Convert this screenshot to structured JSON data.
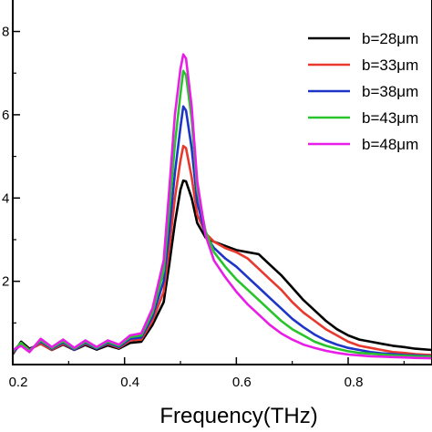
{
  "chart_data": {
    "type": "line",
    "title": "",
    "xlabel": "Frequency(THz)",
    "ylabel": "",
    "xlim": [
      0.2,
      0.95
    ],
    "ylim": [
      0,
      8.8
    ],
    "x_ticks": [
      0.2,
      0.4,
      0.6,
      0.8
    ],
    "x_tick_labels": [
      "0.2",
      "0.4",
      "0.6",
      "0.8"
    ],
    "y_ticks": [
      2,
      4,
      6,
      8
    ],
    "y_tick_labels": [
      "2",
      "4",
      "6",
      "8"
    ],
    "grid": false,
    "legend_position": "top-right",
    "series": [
      {
        "name": "b=28μm",
        "color": "#000000",
        "points": [
          [
            0.2,
            0.25
          ],
          [
            0.215,
            0.55
          ],
          [
            0.23,
            0.38
          ],
          [
            0.25,
            0.5
          ],
          [
            0.27,
            0.35
          ],
          [
            0.29,
            0.48
          ],
          [
            0.31,
            0.35
          ],
          [
            0.33,
            0.47
          ],
          [
            0.35,
            0.36
          ],
          [
            0.37,
            0.46
          ],
          [
            0.39,
            0.38
          ],
          [
            0.41,
            0.52
          ],
          [
            0.43,
            0.55
          ],
          [
            0.45,
            0.95
          ],
          [
            0.47,
            1.5
          ],
          [
            0.48,
            2.4
          ],
          [
            0.49,
            3.4
          ],
          [
            0.5,
            4.2
          ],
          [
            0.505,
            4.42
          ],
          [
            0.51,
            4.4
          ],
          [
            0.52,
            4.0
          ],
          [
            0.53,
            3.4
          ],
          [
            0.545,
            3.05
          ],
          [
            0.56,
            2.95
          ],
          [
            0.58,
            2.85
          ],
          [
            0.6,
            2.75
          ],
          [
            0.62,
            2.7
          ],
          [
            0.64,
            2.65
          ],
          [
            0.66,
            2.4
          ],
          [
            0.68,
            2.15
          ],
          [
            0.7,
            1.85
          ],
          [
            0.72,
            1.55
          ],
          [
            0.74,
            1.3
          ],
          [
            0.76,
            1.05
          ],
          [
            0.78,
            0.85
          ],
          [
            0.8,
            0.7
          ],
          [
            0.82,
            0.6
          ],
          [
            0.84,
            0.55
          ],
          [
            0.86,
            0.5
          ],
          [
            0.88,
            0.45
          ],
          [
            0.9,
            0.42
          ],
          [
            0.92,
            0.38
          ],
          [
            0.95,
            0.35
          ]
        ]
      },
      {
        "name": "b=33μm",
        "color": "#e8392f",
        "points": [
          [
            0.2,
            0.28
          ],
          [
            0.215,
            0.5
          ],
          [
            0.23,
            0.36
          ],
          [
            0.25,
            0.5
          ],
          [
            0.27,
            0.36
          ],
          [
            0.29,
            0.5
          ],
          [
            0.31,
            0.36
          ],
          [
            0.33,
            0.5
          ],
          [
            0.35,
            0.38
          ],
          [
            0.37,
            0.5
          ],
          [
            0.39,
            0.4
          ],
          [
            0.41,
            0.58
          ],
          [
            0.43,
            0.6
          ],
          [
            0.45,
            1.05
          ],
          [
            0.47,
            1.75
          ],
          [
            0.48,
            2.8
          ],
          [
            0.49,
            4.0
          ],
          [
            0.5,
            4.9
          ],
          [
            0.505,
            5.25
          ],
          [
            0.51,
            5.2
          ],
          [
            0.52,
            4.5
          ],
          [
            0.53,
            3.6
          ],
          [
            0.545,
            3.15
          ],
          [
            0.56,
            2.95
          ],
          [
            0.58,
            2.8
          ],
          [
            0.6,
            2.7
          ],
          [
            0.62,
            2.55
          ],
          [
            0.64,
            2.3
          ],
          [
            0.66,
            2.05
          ],
          [
            0.68,
            1.8
          ],
          [
            0.7,
            1.5
          ],
          [
            0.72,
            1.25
          ],
          [
            0.74,
            1.05
          ],
          [
            0.76,
            0.85
          ],
          [
            0.78,
            0.7
          ],
          [
            0.8,
            0.55
          ],
          [
            0.82,
            0.45
          ],
          [
            0.84,
            0.4
          ],
          [
            0.86,
            0.35
          ],
          [
            0.88,
            0.3
          ],
          [
            0.9,
            0.28
          ],
          [
            0.92,
            0.25
          ],
          [
            0.95,
            0.23
          ]
        ]
      },
      {
        "name": "b=38μm",
        "color": "#1f35c8",
        "points": [
          [
            0.2,
            0.3
          ],
          [
            0.215,
            0.48
          ],
          [
            0.23,
            0.35
          ],
          [
            0.25,
            0.55
          ],
          [
            0.27,
            0.38
          ],
          [
            0.29,
            0.53
          ],
          [
            0.31,
            0.36
          ],
          [
            0.33,
            0.52
          ],
          [
            0.35,
            0.38
          ],
          [
            0.37,
            0.52
          ],
          [
            0.39,
            0.42
          ],
          [
            0.41,
            0.62
          ],
          [
            0.43,
            0.65
          ],
          [
            0.45,
            1.15
          ],
          [
            0.47,
            2.0
          ],
          [
            0.48,
            3.2
          ],
          [
            0.49,
            4.6
          ],
          [
            0.5,
            5.7
          ],
          [
            0.505,
            6.2
          ],
          [
            0.51,
            6.1
          ],
          [
            0.52,
            5.2
          ],
          [
            0.53,
            3.9
          ],
          [
            0.545,
            3.1
          ],
          [
            0.56,
            2.8
          ],
          [
            0.58,
            2.55
          ],
          [
            0.6,
            2.35
          ],
          [
            0.62,
            2.1
          ],
          [
            0.64,
            1.85
          ],
          [
            0.66,
            1.6
          ],
          [
            0.68,
            1.35
          ],
          [
            0.7,
            1.1
          ],
          [
            0.72,
            0.9
          ],
          [
            0.74,
            0.72
          ],
          [
            0.76,
            0.58
          ],
          [
            0.78,
            0.48
          ],
          [
            0.8,
            0.4
          ],
          [
            0.82,
            0.35
          ],
          [
            0.84,
            0.3
          ],
          [
            0.86,
            0.27
          ],
          [
            0.88,
            0.25
          ],
          [
            0.9,
            0.23
          ],
          [
            0.92,
            0.22
          ],
          [
            0.95,
            0.2
          ]
        ]
      },
      {
        "name": "b=43μm",
        "color": "#27c42b",
        "points": [
          [
            0.2,
            0.32
          ],
          [
            0.215,
            0.52
          ],
          [
            0.23,
            0.33
          ],
          [
            0.25,
            0.58
          ],
          [
            0.27,
            0.4
          ],
          [
            0.29,
            0.56
          ],
          [
            0.31,
            0.38
          ],
          [
            0.33,
            0.55
          ],
          [
            0.35,
            0.4
          ],
          [
            0.37,
            0.55
          ],
          [
            0.39,
            0.45
          ],
          [
            0.41,
            0.66
          ],
          [
            0.43,
            0.7
          ],
          [
            0.45,
            1.25
          ],
          [
            0.47,
            2.25
          ],
          [
            0.48,
            3.7
          ],
          [
            0.49,
            5.3
          ],
          [
            0.5,
            6.5
          ],
          [
            0.505,
            7.05
          ],
          [
            0.51,
            6.95
          ],
          [
            0.52,
            5.9
          ],
          [
            0.53,
            4.2
          ],
          [
            0.545,
            3.2
          ],
          [
            0.56,
            2.7
          ],
          [
            0.58,
            2.35
          ],
          [
            0.6,
            2.05
          ],
          [
            0.62,
            1.8
          ],
          [
            0.64,
            1.55
          ],
          [
            0.66,
            1.3
          ],
          [
            0.68,
            1.05
          ],
          [
            0.7,
            0.85
          ],
          [
            0.72,
            0.7
          ],
          [
            0.74,
            0.55
          ],
          [
            0.76,
            0.45
          ],
          [
            0.78,
            0.38
          ],
          [
            0.8,
            0.32
          ],
          [
            0.82,
            0.28
          ],
          [
            0.84,
            0.26
          ],
          [
            0.86,
            0.24
          ],
          [
            0.88,
            0.22
          ],
          [
            0.9,
            0.21
          ],
          [
            0.92,
            0.2
          ],
          [
            0.95,
            0.19
          ]
        ]
      },
      {
        "name": "b=48μm",
        "color": "#e81ee8",
        "points": [
          [
            0.2,
            0.35
          ],
          [
            0.215,
            0.45
          ],
          [
            0.23,
            0.3
          ],
          [
            0.25,
            0.62
          ],
          [
            0.27,
            0.42
          ],
          [
            0.29,
            0.6
          ],
          [
            0.31,
            0.4
          ],
          [
            0.33,
            0.58
          ],
          [
            0.35,
            0.42
          ],
          [
            0.37,
            0.58
          ],
          [
            0.39,
            0.48
          ],
          [
            0.41,
            0.7
          ],
          [
            0.43,
            0.75
          ],
          [
            0.45,
            1.35
          ],
          [
            0.47,
            2.5
          ],
          [
            0.48,
            4.2
          ],
          [
            0.49,
            6.0
          ],
          [
            0.5,
            7.1
          ],
          [
            0.505,
            7.45
          ],
          [
            0.51,
            7.35
          ],
          [
            0.52,
            6.2
          ],
          [
            0.53,
            4.4
          ],
          [
            0.545,
            3.1
          ],
          [
            0.56,
            2.5
          ],
          [
            0.58,
            2.1
          ],
          [
            0.6,
            1.75
          ],
          [
            0.62,
            1.45
          ],
          [
            0.64,
            1.2
          ],
          [
            0.66,
            0.95
          ],
          [
            0.68,
            0.75
          ],
          [
            0.7,
            0.6
          ],
          [
            0.72,
            0.48
          ],
          [
            0.74,
            0.4
          ],
          [
            0.76,
            0.33
          ],
          [
            0.78,
            0.28
          ],
          [
            0.8,
            0.24
          ],
          [
            0.82,
            0.22
          ],
          [
            0.84,
            0.2
          ],
          [
            0.86,
            0.19
          ],
          [
            0.88,
            0.18
          ],
          [
            0.9,
            0.17
          ],
          [
            0.92,
            0.16
          ],
          [
            0.95,
            0.15
          ]
        ]
      }
    ]
  }
}
